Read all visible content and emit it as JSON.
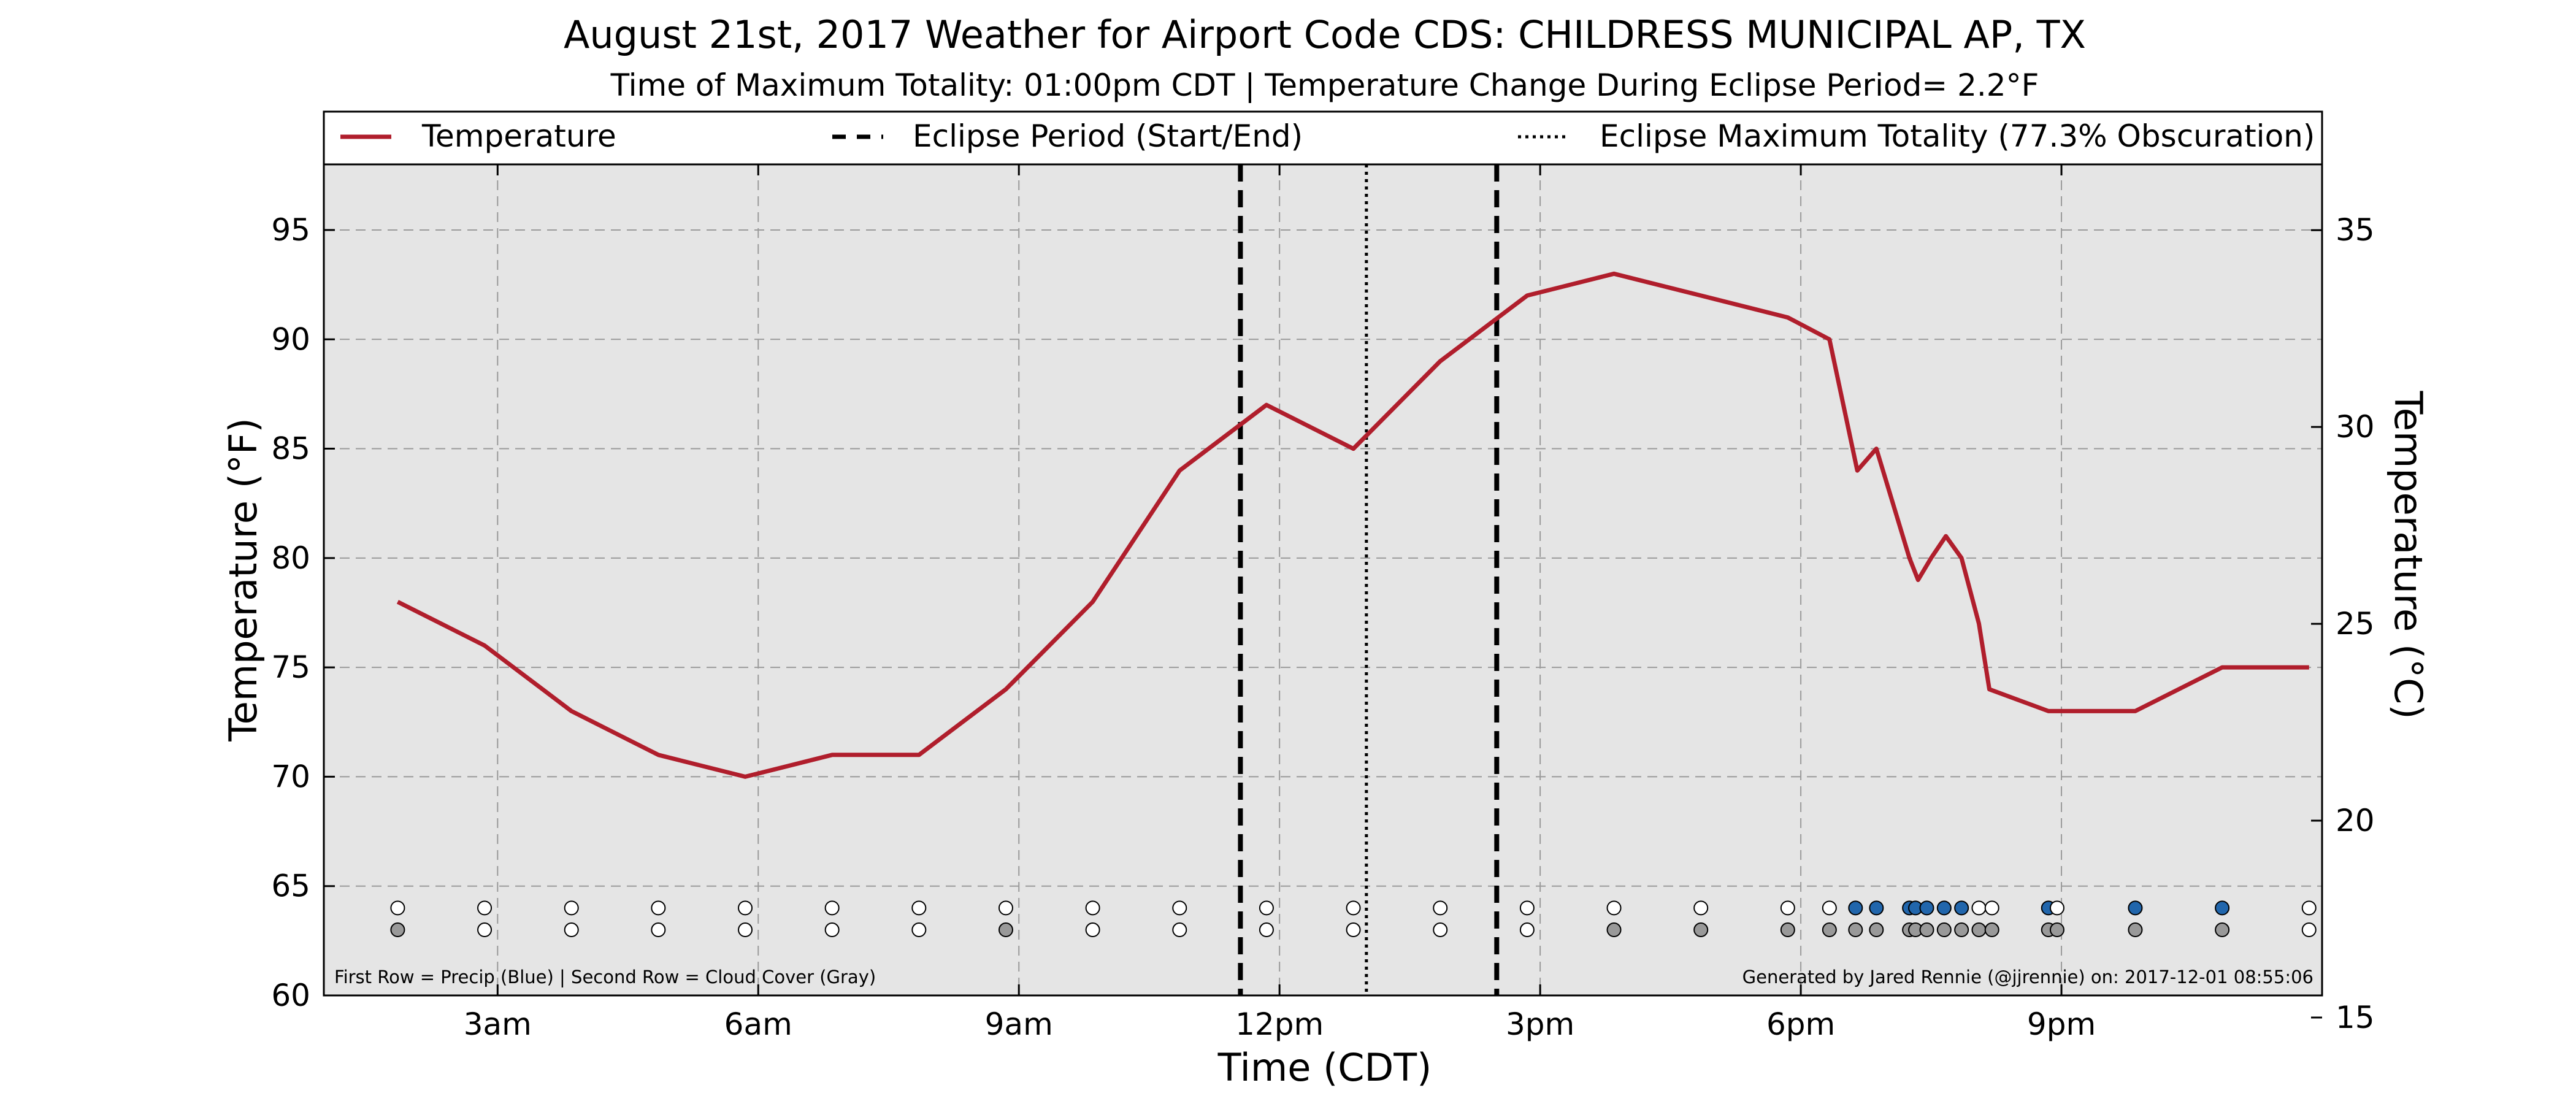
{
  "chart_data": {
    "type": "line",
    "title": "August 21st, 2017 Weather for Airport Code CDS: CHILDRESS MUNICIPAL AP, TX",
    "subtitle": "Time of Maximum Totality: 01:00pm CDT | Temperature Change During Eclipse Period= 2.2°F",
    "xlabel": "Time (CDT)",
    "ylabel_left": "Temperature (°F)",
    "ylabel_right": "Temperature (°C)",
    "xlim": [
      1.0,
      24.0
    ],
    "ylim_f": [
      60,
      98
    ],
    "ylim_c": [
      15.56,
      36.67
    ],
    "x_ticks": [
      {
        "x": 3,
        "label": "3am"
      },
      {
        "x": 6,
        "label": "6am"
      },
      {
        "x": 9,
        "label": "9am"
      },
      {
        "x": 12,
        "label": "12pm"
      },
      {
        "x": 15,
        "label": "3pm"
      },
      {
        "x": 18,
        "label": "6pm"
      },
      {
        "x": 21,
        "label": "9pm"
      }
    ],
    "y_ticks_left": [
      60,
      65,
      70,
      75,
      80,
      85,
      90,
      95
    ],
    "y_ticks_right": [
      15,
      20,
      25,
      30,
      35
    ],
    "grid": true,
    "legend": {
      "placement": "top",
      "entries": [
        {
          "label": "Temperature",
          "style": "solid"
        },
        {
          "label": "Eclipse Period (Start/End)",
          "style": "dashed"
        },
        {
          "label": "Eclipse Maximum Totality (77.3% Obscuration)",
          "style": "dotted"
        }
      ]
    },
    "eclipse_start": 11.55,
    "eclipse_end": 14.5,
    "eclipse_max": 13.0,
    "series": [
      {
        "name": "Temperature",
        "color": "#b01e2c",
        "points": [
          [
            1.85,
            78
          ],
          [
            2.85,
            76
          ],
          [
            3.85,
            73
          ],
          [
            4.85,
            71
          ],
          [
            5.85,
            70
          ],
          [
            6.85,
            71
          ],
          [
            7.85,
            71
          ],
          [
            8.85,
            74
          ],
          [
            9.85,
            78
          ],
          [
            10.85,
            84
          ],
          [
            11.85,
            87
          ],
          [
            12.85,
            85
          ],
          [
            13.85,
            89
          ],
          [
            14.85,
            92
          ],
          [
            15.85,
            93
          ],
          [
            16.85,
            92
          ],
          [
            17.85,
            91
          ],
          [
            18.33,
            90
          ],
          [
            18.65,
            84
          ],
          [
            18.87,
            85
          ],
          [
            19.25,
            80
          ],
          [
            19.35,
            79
          ],
          [
            19.5,
            80
          ],
          [
            19.67,
            81
          ],
          [
            19.85,
            80
          ],
          [
            20.05,
            77
          ],
          [
            20.17,
            74
          ],
          [
            20.85,
            73
          ],
          [
            21.85,
            73
          ],
          [
            22.85,
            75
          ],
          [
            23.85,
            75
          ]
        ]
      }
    ],
    "observation_rows": {
      "precip_y": 64,
      "cloud_y": 63,
      "precip_color": "#2166ac",
      "cloud_color": "#999999",
      "empty_color": "#ffffff",
      "precip": [
        [
          1.85,
          false
        ],
        [
          2.85,
          false
        ],
        [
          3.85,
          false
        ],
        [
          4.85,
          false
        ],
        [
          5.85,
          false
        ],
        [
          6.85,
          false
        ],
        [
          7.85,
          false
        ],
        [
          8.85,
          false
        ],
        [
          9.85,
          false
        ],
        [
          10.85,
          false
        ],
        [
          11.85,
          false
        ],
        [
          12.85,
          false
        ],
        [
          13.85,
          false
        ],
        [
          14.85,
          false
        ],
        [
          15.85,
          false
        ],
        [
          16.85,
          false
        ],
        [
          17.85,
          false
        ],
        [
          18.33,
          false
        ],
        [
          18.63,
          true
        ],
        [
          18.87,
          true
        ],
        [
          19.25,
          true
        ],
        [
          19.32,
          true
        ],
        [
          19.45,
          true
        ],
        [
          19.65,
          true
        ],
        [
          19.85,
          true
        ],
        [
          20.05,
          false
        ],
        [
          20.2,
          false
        ],
        [
          20.85,
          true
        ],
        [
          20.95,
          false
        ],
        [
          21.85,
          true
        ],
        [
          22.85,
          true
        ],
        [
          23.85,
          false
        ]
      ],
      "cloud": [
        [
          1.85,
          true
        ],
        [
          2.85,
          false
        ],
        [
          3.85,
          false
        ],
        [
          4.85,
          false
        ],
        [
          5.85,
          false
        ],
        [
          6.85,
          false
        ],
        [
          7.85,
          false
        ],
        [
          8.85,
          true
        ],
        [
          9.85,
          false
        ],
        [
          10.85,
          false
        ],
        [
          11.85,
          false
        ],
        [
          12.85,
          false
        ],
        [
          13.85,
          false
        ],
        [
          14.85,
          false
        ],
        [
          15.85,
          true
        ],
        [
          16.85,
          true
        ],
        [
          17.85,
          true
        ],
        [
          18.33,
          true
        ],
        [
          18.63,
          true
        ],
        [
          18.87,
          true
        ],
        [
          19.25,
          true
        ],
        [
          19.32,
          true
        ],
        [
          19.45,
          true
        ],
        [
          19.65,
          true
        ],
        [
          19.85,
          true
        ],
        [
          20.05,
          true
        ],
        [
          20.2,
          true
        ],
        [
          20.85,
          true
        ],
        [
          20.95,
          true
        ],
        [
          21.85,
          true
        ],
        [
          22.85,
          true
        ],
        [
          23.85,
          false
        ]
      ]
    },
    "footnote_left": "First Row = Precip (Blue) | Second Row = Cloud Cover (Gray)",
    "footnote_right": "Generated by Jared Rennie (@jjrennie) on: 2017-12-01 08:55:06",
    "plot_background": "#e5e5e5"
  }
}
